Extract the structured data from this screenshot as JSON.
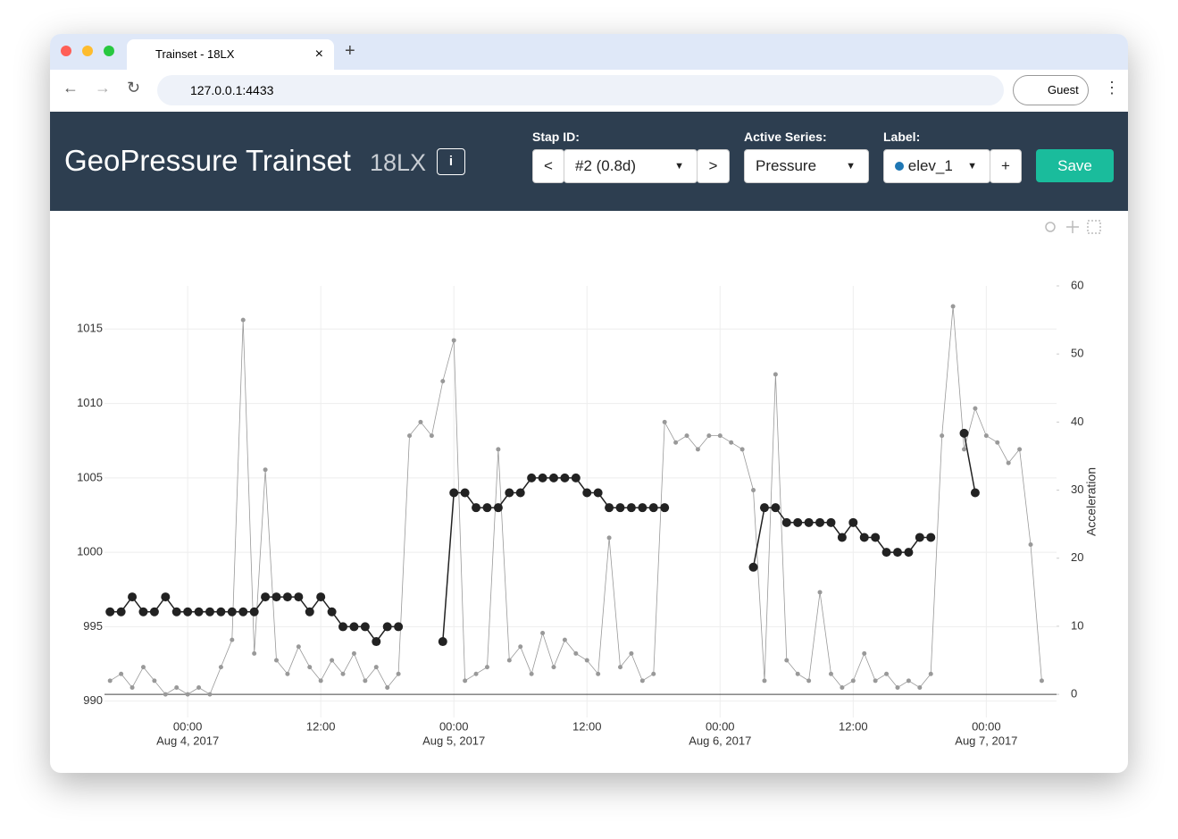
{
  "browser": {
    "tab_title": "Trainset - 18LX",
    "url": "127.0.0.1:4433",
    "profile": "Guest"
  },
  "header": {
    "title": "GeoPressure Trainset",
    "subtitle": "18LX",
    "stap_label": "Stap ID:",
    "prev": "<",
    "stap_value": "#2 (0.8d)",
    "next": ">",
    "series_label": "Active Series:",
    "series_value": "Pressure",
    "label_label": "Label:",
    "label_value": "elev_1",
    "add": "+",
    "save": "Save"
  },
  "chart_data": {
    "type": "line",
    "x": [
      "2017-08-03 17:00",
      "2017-08-03 18:00",
      "2017-08-03 19:00",
      "2017-08-03 20:00",
      "2017-08-03 21:00",
      "2017-08-03 22:00",
      "2017-08-03 23:00",
      "2017-08-04 00:00",
      "2017-08-04 01:00",
      "2017-08-04 02:00",
      "2017-08-04 03:00",
      "2017-08-04 04:00",
      "2017-08-04 05:00",
      "2017-08-04 06:00",
      "2017-08-04 07:00",
      "2017-08-04 08:00",
      "2017-08-04 09:00",
      "2017-08-04 10:00",
      "2017-08-04 11:00",
      "2017-08-04 12:00",
      "2017-08-04 13:00",
      "2017-08-04 14:00",
      "2017-08-04 15:00",
      "2017-08-04 16:00",
      "2017-08-04 17:00",
      "2017-08-04 18:00",
      "2017-08-04 19:00",
      "2017-08-04 20:00",
      "2017-08-04 21:00",
      "2017-08-04 22:00",
      "2017-08-04 23:00",
      "2017-08-05 00:00",
      "2017-08-05 01:00",
      "2017-08-05 02:00",
      "2017-08-05 03:00",
      "2017-08-05 04:00",
      "2017-08-05 05:00",
      "2017-08-05 06:00",
      "2017-08-05 07:00",
      "2017-08-05 08:00",
      "2017-08-05 09:00",
      "2017-08-05 10:00",
      "2017-08-05 11:00",
      "2017-08-05 12:00",
      "2017-08-05 13:00",
      "2017-08-05 14:00",
      "2017-08-05 15:00",
      "2017-08-05 16:00",
      "2017-08-05 17:00",
      "2017-08-05 18:00",
      "2017-08-05 19:00",
      "2017-08-05 20:00",
      "2017-08-05 21:00",
      "2017-08-05 22:00",
      "2017-08-05 23:00",
      "2017-08-06 00:00",
      "2017-08-06 01:00",
      "2017-08-06 02:00",
      "2017-08-06 03:00",
      "2017-08-06 04:00",
      "2017-08-06 05:00",
      "2017-08-06 06:00",
      "2017-08-06 07:00",
      "2017-08-06 08:00",
      "2017-08-06 09:00",
      "2017-08-06 10:00",
      "2017-08-06 11:00",
      "2017-08-06 12:00",
      "2017-08-06 13:00",
      "2017-08-06 14:00",
      "2017-08-06 15:00",
      "2017-08-06 16:00",
      "2017-08-06 17:00",
      "2017-08-06 18:00",
      "2017-08-06 19:00",
      "2017-08-06 20:00",
      "2017-08-06 21:00",
      "2017-08-06 22:00",
      "2017-08-06 23:00",
      "2017-08-07 00:00",
      "2017-08-07 01:00",
      "2017-08-07 02:00",
      "2017-08-07 03:00",
      "2017-08-07 04:00",
      "2017-08-07 05:00"
    ],
    "series": [
      {
        "color": "#222222",
        "values": [
          996,
          996,
          997,
          996,
          996,
          997,
          996,
          996,
          996,
          996,
          996,
          996,
          996,
          996,
          997,
          997,
          997,
          997,
          996,
          997,
          996,
          995,
          995,
          995,
          994,
          995,
          995,
          null,
          null,
          null,
          994,
          1004,
          1004,
          1003,
          1003,
          1003,
          1004,
          1004,
          1005,
          1005,
          1005,
          1005,
          1005,
          1004,
          1004,
          1003,
          1003,
          1003,
          1003,
          1003,
          1003,
          null,
          null,
          null,
          null,
          null,
          null,
          null,
          999,
          1003,
          1003,
          1002,
          1002,
          1002,
          1002,
          1002,
          1001,
          1002,
          1001,
          1001,
          1000,
          1000,
          1000,
          1001,
          1001,
          null,
          null,
          1008,
          1004,
          null,
          null,
          null,
          null,
          null,
          null
        ]
      },
      {
        "color": "#999999",
        "axis": "y2",
        "values": [
          2,
          3,
          1,
          4,
          2,
          0,
          1,
          0,
          1,
          0,
          4,
          8,
          55,
          6,
          33,
          5,
          3,
          7,
          4,
          2,
          5,
          3,
          6,
          2,
          4,
          1,
          3,
          38,
          40,
          38,
          46,
          52,
          2,
          3,
          4,
          36,
          5,
          7,
          3,
          9,
          4,
          8,
          6,
          5,
          3,
          23,
          4,
          6,
          2,
          3,
          40,
          37,
          38,
          36,
          38,
          38,
          37,
          36,
          30,
          2,
          47,
          5,
          3,
          2,
          15,
          3,
          1,
          2,
          6,
          2,
          3,
          1,
          2,
          1,
          3,
          38,
          57,
          36,
          42,
          38,
          37,
          34,
          36,
          22,
          2
        ]
      }
    ],
    "xlim": [
      "2017-08-03 16:30",
      "2017-08-07 06:20"
    ],
    "xticks": [
      {
        "value": "2017-08-04 00:00",
        "label": [
          "00:00",
          "Aug 4, 2017"
        ]
      },
      {
        "value": "2017-08-04 12:00",
        "label": [
          "12:00"
        ]
      },
      {
        "value": "2017-08-05 00:00",
        "label": [
          "00:00",
          "Aug 5, 2017"
        ]
      },
      {
        "value": "2017-08-05 12:00",
        "label": [
          "12:00"
        ]
      },
      {
        "value": "2017-08-06 00:00",
        "label": [
          "00:00",
          "Aug 6, 2017"
        ]
      },
      {
        "value": "2017-08-06 12:00",
        "label": [
          "12:00"
        ]
      },
      {
        "value": "2017-08-07 00:00",
        "label": [
          "00:00",
          "Aug 7, 2017"
        ]
      }
    ],
    "ylim": [
      988.9,
      1017.9
    ],
    "yticks": [
      990,
      995,
      1000,
      1005,
      1010,
      1015
    ],
    "y2lim": [
      -3.4,
      60
    ],
    "y2ticks": [
      0,
      10,
      20,
      30,
      40,
      50,
      60
    ],
    "y2label": "Acceleration",
    "grid": true
  }
}
